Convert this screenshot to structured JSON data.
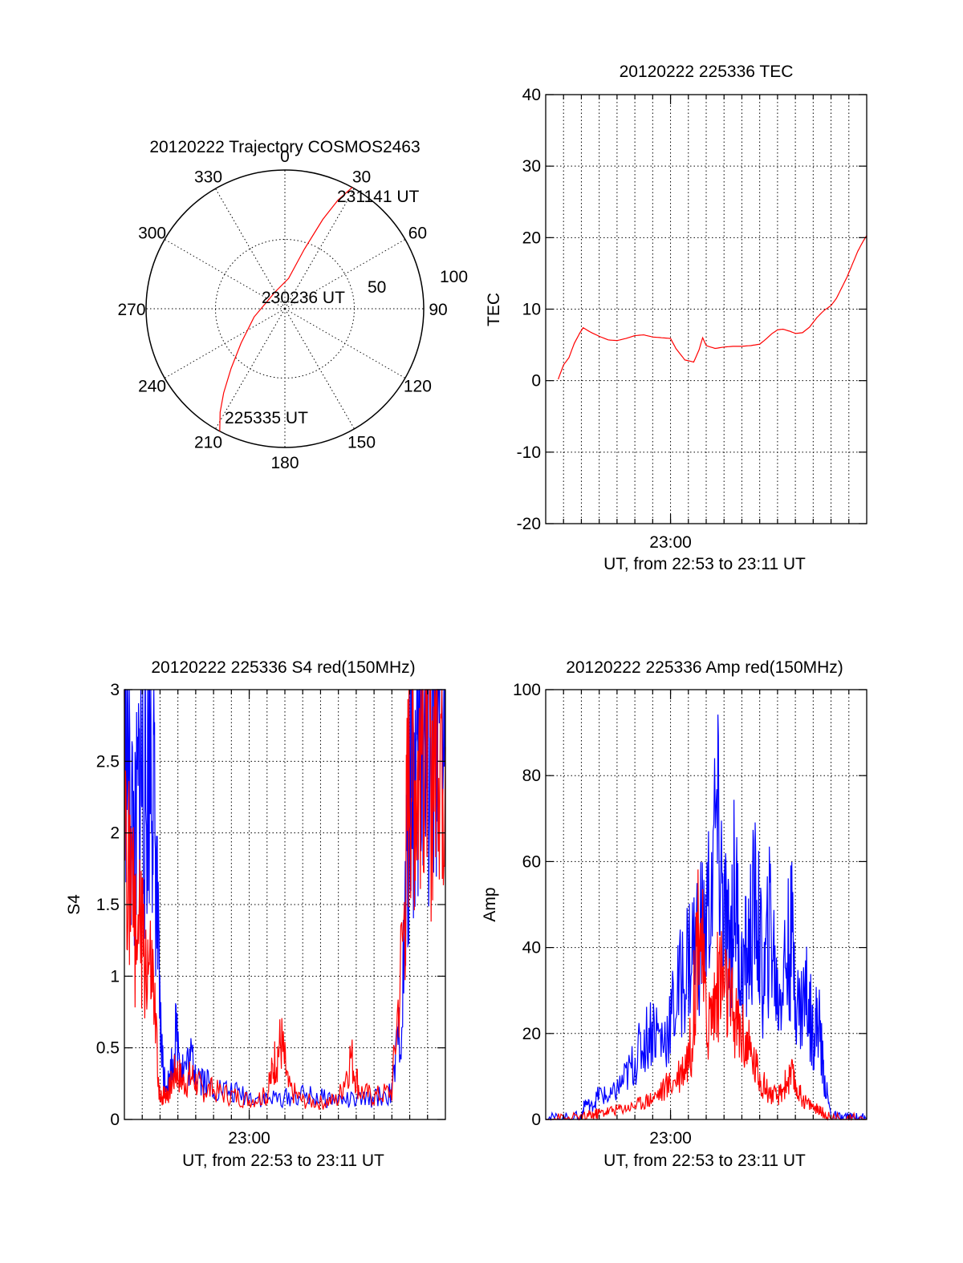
{
  "colors": {
    "red": "#ff0000",
    "blue": "#0000ff",
    "black": "#000000",
    "background": "#ffffff"
  },
  "chart_data": [
    {
      "id": "trajectory",
      "type": "scatter",
      "projection": "polar",
      "title": "20120222 Trajectory COSMOS2463",
      "azimuth_labels": [
        "0",
        "30",
        "60",
        "90",
        "120",
        "150",
        "180",
        "210",
        "240",
        "270",
        "300",
        "330"
      ],
      "azimuth_values": [
        0,
        30,
        60,
        90,
        120,
        150,
        180,
        210,
        240,
        270,
        300,
        330
      ],
      "radial_labels": [
        "50",
        "100"
      ],
      "radial_values": [
        50,
        100
      ],
      "radial_max": 100,
      "grid": true,
      "annotations": {
        "end": "231141 UT",
        "middle": "230236 UT",
        "start": "225335 UT"
      },
      "series": [
        {
          "color": "#ff0000",
          "points_azimuth_zenith": [
            [
              208,
              100
            ],
            [
              212,
              88
            ],
            [
              216,
              75
            ],
            [
              222,
              58
            ],
            [
              232,
              40
            ],
            [
              255,
              23
            ],
            [
              330,
              14
            ],
            [
              7,
              22
            ],
            [
              18,
              45
            ],
            [
              23,
              70
            ],
            [
              26,
              87
            ],
            [
              29,
              100
            ]
          ]
        }
      ]
    },
    {
      "id": "tec",
      "type": "line",
      "title": "20120222 225336 TEC",
      "xlabel": "UT, from 22:53 to 23:11 UT",
      "ylabel": "TEC",
      "x_tick_labels": [
        "23:00"
      ],
      "x_tick_values_min": [
        7
      ],
      "x_range_min": [
        0,
        18
      ],
      "x_minor_ticks_min": [
        1,
        2,
        3,
        4,
        5,
        6,
        7,
        8,
        9,
        10,
        11,
        12,
        13,
        14,
        15,
        16,
        17
      ],
      "ylim": [
        -20,
        40
      ],
      "y_tick_labels": [
        "-20",
        "-10",
        "0",
        "10",
        "20",
        "30",
        "40"
      ],
      "y_tick_values": [
        -20,
        -10,
        0,
        10,
        20,
        30,
        40
      ],
      "grid": true,
      "series": [
        {
          "color": "#ff0000",
          "x_min": [
            0.7,
            1.0,
            1.3,
            1.6,
            1.9,
            2.1,
            2.5,
            3.0,
            3.5,
            4.0,
            4.5,
            5.0,
            5.5,
            6.0,
            6.5,
            7.0,
            7.3,
            7.8,
            8.3,
            8.6,
            8.8,
            9.0,
            9.5,
            10.0,
            10.5,
            11.0,
            11.5,
            12.0,
            12.3,
            12.7,
            13.0,
            13.3,
            13.7,
            14.0,
            14.4,
            14.8,
            15.2,
            15.6,
            16.0,
            16.3,
            16.6,
            16.9,
            17.2,
            17.5,
            17.8,
            18.0
          ],
          "y": [
            0.2,
            2.2,
            3.2,
            5.2,
            6.6,
            7.4,
            6.8,
            6.2,
            5.7,
            5.6,
            5.9,
            6.3,
            6.4,
            6.1,
            6.0,
            5.9,
            4.5,
            2.9,
            2.6,
            4.3,
            6.0,
            4.9,
            4.5,
            4.7,
            4.8,
            4.8,
            4.9,
            5.1,
            5.7,
            6.6,
            7.1,
            7.2,
            6.9,
            6.6,
            6.7,
            7.5,
            8.8,
            9.8,
            10.5,
            11.5,
            13.0,
            14.5,
            16.3,
            18.1,
            19.5,
            20.3
          ]
        }
      ]
    },
    {
      "id": "s4",
      "type": "line",
      "title": "20120222 225336 S4 red(150MHz)",
      "xlabel": "UT, from 22:53 to 23:11 UT",
      "ylabel": "S4",
      "x_tick_labels": [
        "23:00"
      ],
      "x_tick_values_min": [
        7
      ],
      "x_range_min": [
        0,
        18
      ],
      "x_minor_ticks_min": [
        1,
        2,
        3,
        4,
        5,
        6,
        7,
        8,
        9,
        10,
        11,
        12,
        13,
        14,
        15,
        16,
        17
      ],
      "ylim": [
        0,
        3
      ],
      "y_tick_labels": [
        "0",
        "0.5",
        "1",
        "1.5",
        "2",
        "2.5",
        "3"
      ],
      "y_tick_values": [
        0,
        0.5,
        1,
        1.5,
        2,
        2.5,
        3
      ],
      "grid": true,
      "series": [
        {
          "color": "#0000ff",
          "x_min": [
            0.0,
            0.3,
            0.6,
            0.9,
            1.2,
            1.5,
            1.8,
            2.0,
            2.2,
            2.5,
            2.9,
            3.3,
            3.8,
            4.3,
            5.0,
            6.0,
            7.0,
            8.0,
            9.0,
            10.0,
            11.0,
            12.0,
            13.0,
            14.0,
            15.0,
            15.6,
            15.9,
            16.1,
            16.4,
            16.7,
            17.0,
            17.3,
            17.6,
            18.0
          ],
          "y": [
            3.0,
            2.3,
            1.8,
            2.5,
            2.1,
            2.8,
            1.6,
            0.7,
            0.3,
            0.25,
            0.6,
            0.35,
            0.42,
            0.3,
            0.22,
            0.19,
            0.16,
            0.14,
            0.15,
            0.17,
            0.15,
            0.14,
            0.13,
            0.15,
            0.18,
            0.8,
            2.0,
            2.6,
            2.2,
            2.8,
            2.4,
            2.9,
            2.6,
            3.0
          ]
        },
        {
          "color": "#ff0000",
          "x_min": [
            0.0,
            0.4,
            0.8,
            1.2,
            1.6,
            2.0,
            2.2,
            2.5,
            2.9,
            3.3,
            3.8,
            4.3,
            5.0,
            6.0,
            7.0,
            8.0,
            8.4,
            8.8,
            9.2,
            10.0,
            11.0,
            12.0,
            12.7,
            13.2,
            14.0,
            15.0,
            15.7,
            16.0,
            16.4,
            16.8,
            17.2,
            17.6,
            18.0
          ],
          "y": [
            2.5,
            1.5,
            1.3,
            1.1,
            0.9,
            0.12,
            0.18,
            0.2,
            0.35,
            0.26,
            0.3,
            0.22,
            0.2,
            0.17,
            0.14,
            0.16,
            0.4,
            0.55,
            0.22,
            0.13,
            0.12,
            0.14,
            0.45,
            0.2,
            0.16,
            0.2,
            1.4,
            2.7,
            2.4,
            2.8,
            2.5,
            2.9,
            2.6
          ]
        }
      ]
    },
    {
      "id": "amp",
      "type": "line",
      "title": "20120222 225336 Amp red(150MHz)",
      "xlabel": "UT, from 22:53 to 23:11 UT",
      "ylabel": "Amp",
      "x_tick_labels": [
        "23:00"
      ],
      "x_tick_values_min": [
        7
      ],
      "x_range_min": [
        0,
        18
      ],
      "x_minor_ticks_min": [
        1,
        2,
        3,
        4,
        5,
        6,
        7,
        8,
        9,
        10,
        11,
        12,
        13,
        14,
        15,
        16,
        17
      ],
      "ylim": [
        0,
        100
      ],
      "y_tick_labels": [
        "0",
        "20",
        "40",
        "60",
        "80",
        "100"
      ],
      "y_tick_values": [
        0,
        20,
        40,
        60,
        80,
        100
      ],
      "grid": true,
      "series": [
        {
          "color": "#0000ff",
          "x_min": [
            0.0,
            1.0,
            2.0,
            2.2,
            2.6,
            3.0,
            3.6,
            4.2,
            4.8,
            5.4,
            6.0,
            6.6,
            7.2,
            7.8,
            8.4,
            9.0,
            9.6,
            10.0,
            10.3,
            10.6,
            11.0,
            11.4,
            11.8,
            12.2,
            12.6,
            13.0,
            13.4,
            13.8,
            14.2,
            14.6,
            15.0,
            15.3,
            15.6,
            16.0,
            16.5,
            17.0,
            17.5,
            18.0
          ],
          "y": [
            0.2,
            0.3,
            0.6,
            4.0,
            3.0,
            6.0,
            5.0,
            8.0,
            12.0,
            17.0,
            22.0,
            18.0,
            26.0,
            35.0,
            42.0,
            45.0,
            68.0,
            48.0,
            38.0,
            55.0,
            33.0,
            40.0,
            52.0,
            30.0,
            47.0,
            28.0,
            36.0,
            42.0,
            25.0,
            30.0,
            20.0,
            24.0,
            10.0,
            0.8,
            0.4,
            0.3,
            0.2,
            0.2
          ]
        },
        {
          "color": "#ff0000",
          "x_min": [
            0.0,
            1.0,
            2.0,
            2.6,
            3.0,
            3.6,
            4.2,
            4.8,
            5.4,
            6.0,
            6.6,
            7.2,
            7.8,
            8.2,
            8.6,
            9.0,
            9.4,
            9.8,
            10.2,
            10.6,
            11.0,
            11.4,
            11.8,
            12.2,
            12.6,
            13.0,
            13.4,
            13.8,
            14.2,
            14.6,
            15.0,
            15.4,
            15.7,
            16.0,
            17.0,
            18.0
          ],
          "y": [
            0.1,
            0.2,
            0.3,
            1.0,
            1.5,
            2.0,
            2.5,
            3.0,
            4.0,
            5.0,
            7.0,
            9.0,
            13.0,
            18.0,
            52.0,
            22.0,
            26.0,
            34.0,
            28.0,
            23.0,
            20.0,
            16.0,
            12.0,
            8.0,
            6.0,
            5.0,
            8.0,
            10.0,
            6.0,
            4.0,
            3.0,
            2.0,
            1.0,
            0.3,
            0.2,
            0.1
          ]
        }
      ]
    }
  ]
}
